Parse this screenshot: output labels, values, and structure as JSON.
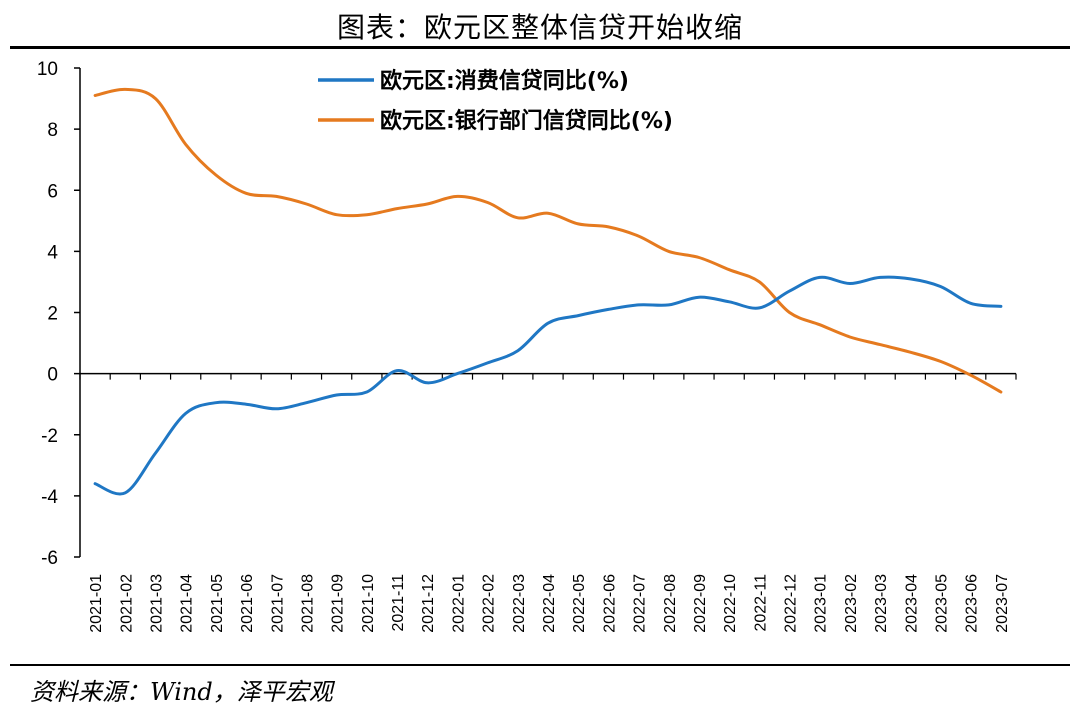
{
  "title": "图表：欧元区整体信贷开始收缩",
  "source": "资料来源：Wind，泽平宏观",
  "chart_data": {
    "type": "line",
    "title": "图表：欧元区整体信贷开始收缩",
    "xlabel": "",
    "ylabel": "",
    "ylim": [
      -6,
      10
    ],
    "yticks": [
      10,
      8,
      6,
      4,
      2,
      0,
      -2,
      -4,
      -6
    ],
    "grid": false,
    "legend": "top-center",
    "categories": [
      "2021-01",
      "2021-02",
      "2021-03",
      "2021-04",
      "2021-05",
      "2021-06",
      "2021-07",
      "2021-08",
      "2021-09",
      "2021-10",
      "2021-11",
      "2021-12",
      "2022-01",
      "2022-02",
      "2022-03",
      "2022-04",
      "2022-05",
      "2022-06",
      "2022-07",
      "2022-08",
      "2022-09",
      "2022-10",
      "2022-11",
      "2022-12",
      "2023-01",
      "2023-02",
      "2023-03",
      "2023-04",
      "2023-05",
      "2023-06",
      "2023-07"
    ],
    "series": [
      {
        "name": "欧元区:消费信贷同比(%)",
        "color": "#1f77c4",
        "values": [
          -3.6,
          -3.9,
          -2.6,
          -1.3,
          -0.95,
          -1.0,
          -1.15,
          -0.95,
          -0.7,
          -0.6,
          0.1,
          -0.3,
          0.0,
          0.35,
          0.75,
          1.65,
          1.9,
          2.1,
          2.25,
          2.25,
          2.5,
          2.35,
          2.15,
          2.7,
          3.15,
          2.95,
          3.15,
          3.1,
          2.85,
          2.3,
          2.2
        ]
      },
      {
        "name": "欧元区:银行部门信贷同比(%)",
        "color": "#e57a1f",
        "values": [
          9.1,
          9.3,
          9.0,
          7.5,
          6.5,
          5.9,
          5.8,
          5.55,
          5.2,
          5.2,
          5.4,
          5.55,
          5.8,
          5.6,
          5.1,
          5.25,
          4.9,
          4.8,
          4.5,
          4.0,
          3.8,
          3.4,
          3.0,
          2.0,
          1.6,
          1.2,
          0.95,
          0.7,
          0.4,
          -0.05,
          -0.6
        ]
      }
    ]
  }
}
